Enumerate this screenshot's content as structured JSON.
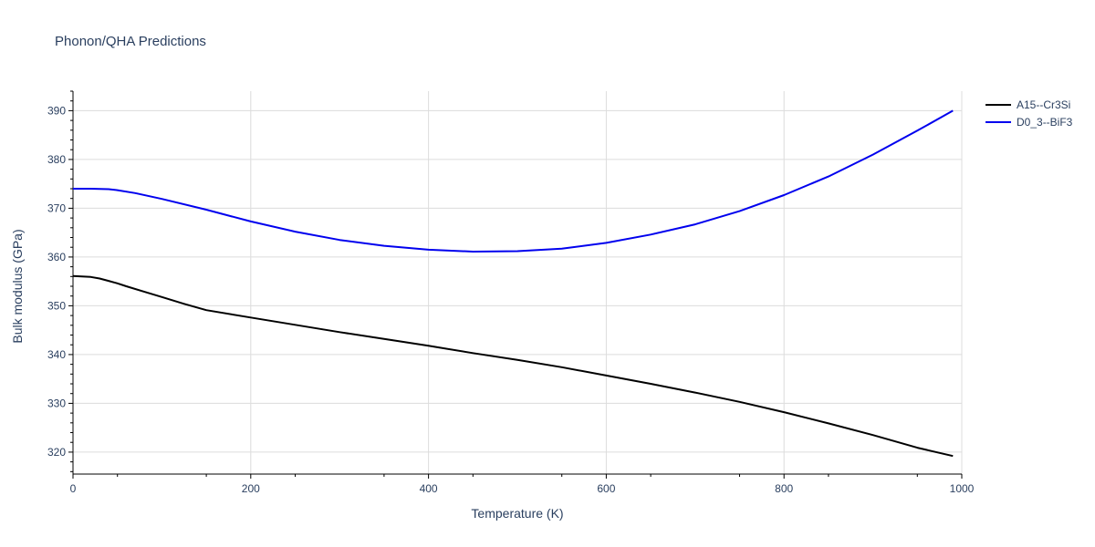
{
  "chart_data": {
    "type": "line",
    "title": "Phonon/QHA Predictions",
    "xlabel": "Temperature (K)",
    "ylabel": "Bulk modulus (GPa)",
    "xlim": [
      0,
      1000
    ],
    "ylim": [
      315.5,
      394
    ],
    "x_ticks": [
      0,
      200,
      400,
      600,
      800,
      1000
    ],
    "y_ticks": [
      320,
      330,
      340,
      350,
      360,
      370,
      380,
      390
    ],
    "grid": true,
    "legend_position": "top-right",
    "series": [
      {
        "name": "A15--Cr3Si",
        "color": "#000000",
        "x": [
          0,
          10,
          20,
          30,
          40,
          50,
          60,
          80,
          100,
          125,
          150,
          200,
          250,
          300,
          350,
          400,
          450,
          500,
          550,
          600,
          650,
          700,
          750,
          800,
          850,
          900,
          950,
          990
        ],
        "y": [
          356.1,
          356.0,
          355.9,
          355.6,
          355.1,
          354.6,
          354.0,
          352.9,
          351.8,
          350.4,
          349.1,
          347.6,
          346.1,
          344.6,
          343.2,
          341.8,
          340.3,
          338.9,
          337.4,
          335.7,
          334.0,
          332.2,
          330.3,
          328.2,
          325.9,
          323.5,
          320.9,
          319.2
        ]
      },
      {
        "name": "D0_3--BiF3",
        "color": "#0000ee",
        "x": [
          0,
          20,
          40,
          50,
          70,
          100,
          150,
          200,
          250,
          300,
          350,
          400,
          450,
          500,
          550,
          600,
          650,
          700,
          750,
          800,
          850,
          900,
          950,
          990
        ],
        "y": [
          374.0,
          374.0,
          373.9,
          373.7,
          373.1,
          371.9,
          369.7,
          367.3,
          365.2,
          363.5,
          362.3,
          361.5,
          361.1,
          361.2,
          361.7,
          362.9,
          364.6,
          366.7,
          369.4,
          372.7,
          376.5,
          381.0,
          385.9,
          390.0
        ]
      }
    ]
  }
}
